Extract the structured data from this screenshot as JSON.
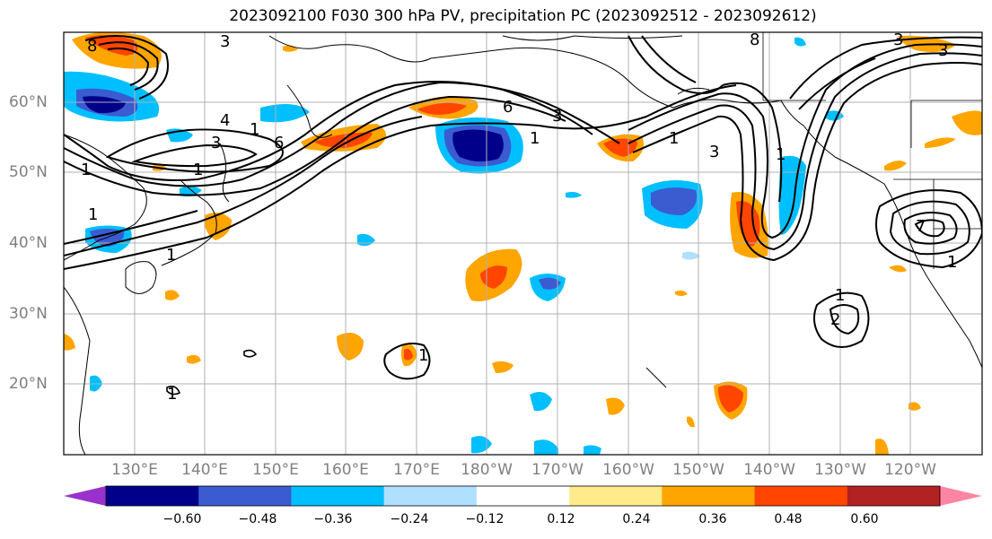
{
  "title": "2023092100 F030 300 hPa PV, precipitation PC (2023092512 - 2023092612)",
  "lat_labels": [
    "60°N",
    "50°N",
    "40°N",
    "30°N",
    "20°N"
  ],
  "lon_labels": [
    "130°E",
    "140°E",
    "150°E",
    "160°E",
    "170°E",
    "180°W",
    "170°W",
    "160°W",
    "150°W",
    "140°W",
    "130°W",
    "120°W"
  ],
  "colorbar": {
    "colors": [
      "#9932cc",
      "#00008b",
      "#3b5bd1",
      "#00bfff",
      "#b0e0ff",
      "#ffffff",
      "#ffeb8a",
      "#ffa500",
      "#ff4500",
      "#b22222",
      "#ff85a2"
    ],
    "tick_labels": [
      "−0.60",
      "−0.48",
      "−0.36",
      "−0.24",
      "−0.12",
      "0.12",
      "0.24",
      "0.36",
      "0.48",
      "0.60"
    ]
  },
  "contour_labels": [
    "8",
    "3",
    "3",
    "4",
    "6",
    "1",
    "6",
    "3",
    "1",
    "3",
    "1",
    "1",
    "1",
    "7",
    "1",
    "1",
    "1",
    "3",
    "1",
    "8",
    "3",
    "1",
    "2",
    "1",
    "1"
  ],
  "colors": {
    "contour": "#000000",
    "grid": "#b0b0b0",
    "land": "#000000"
  }
}
